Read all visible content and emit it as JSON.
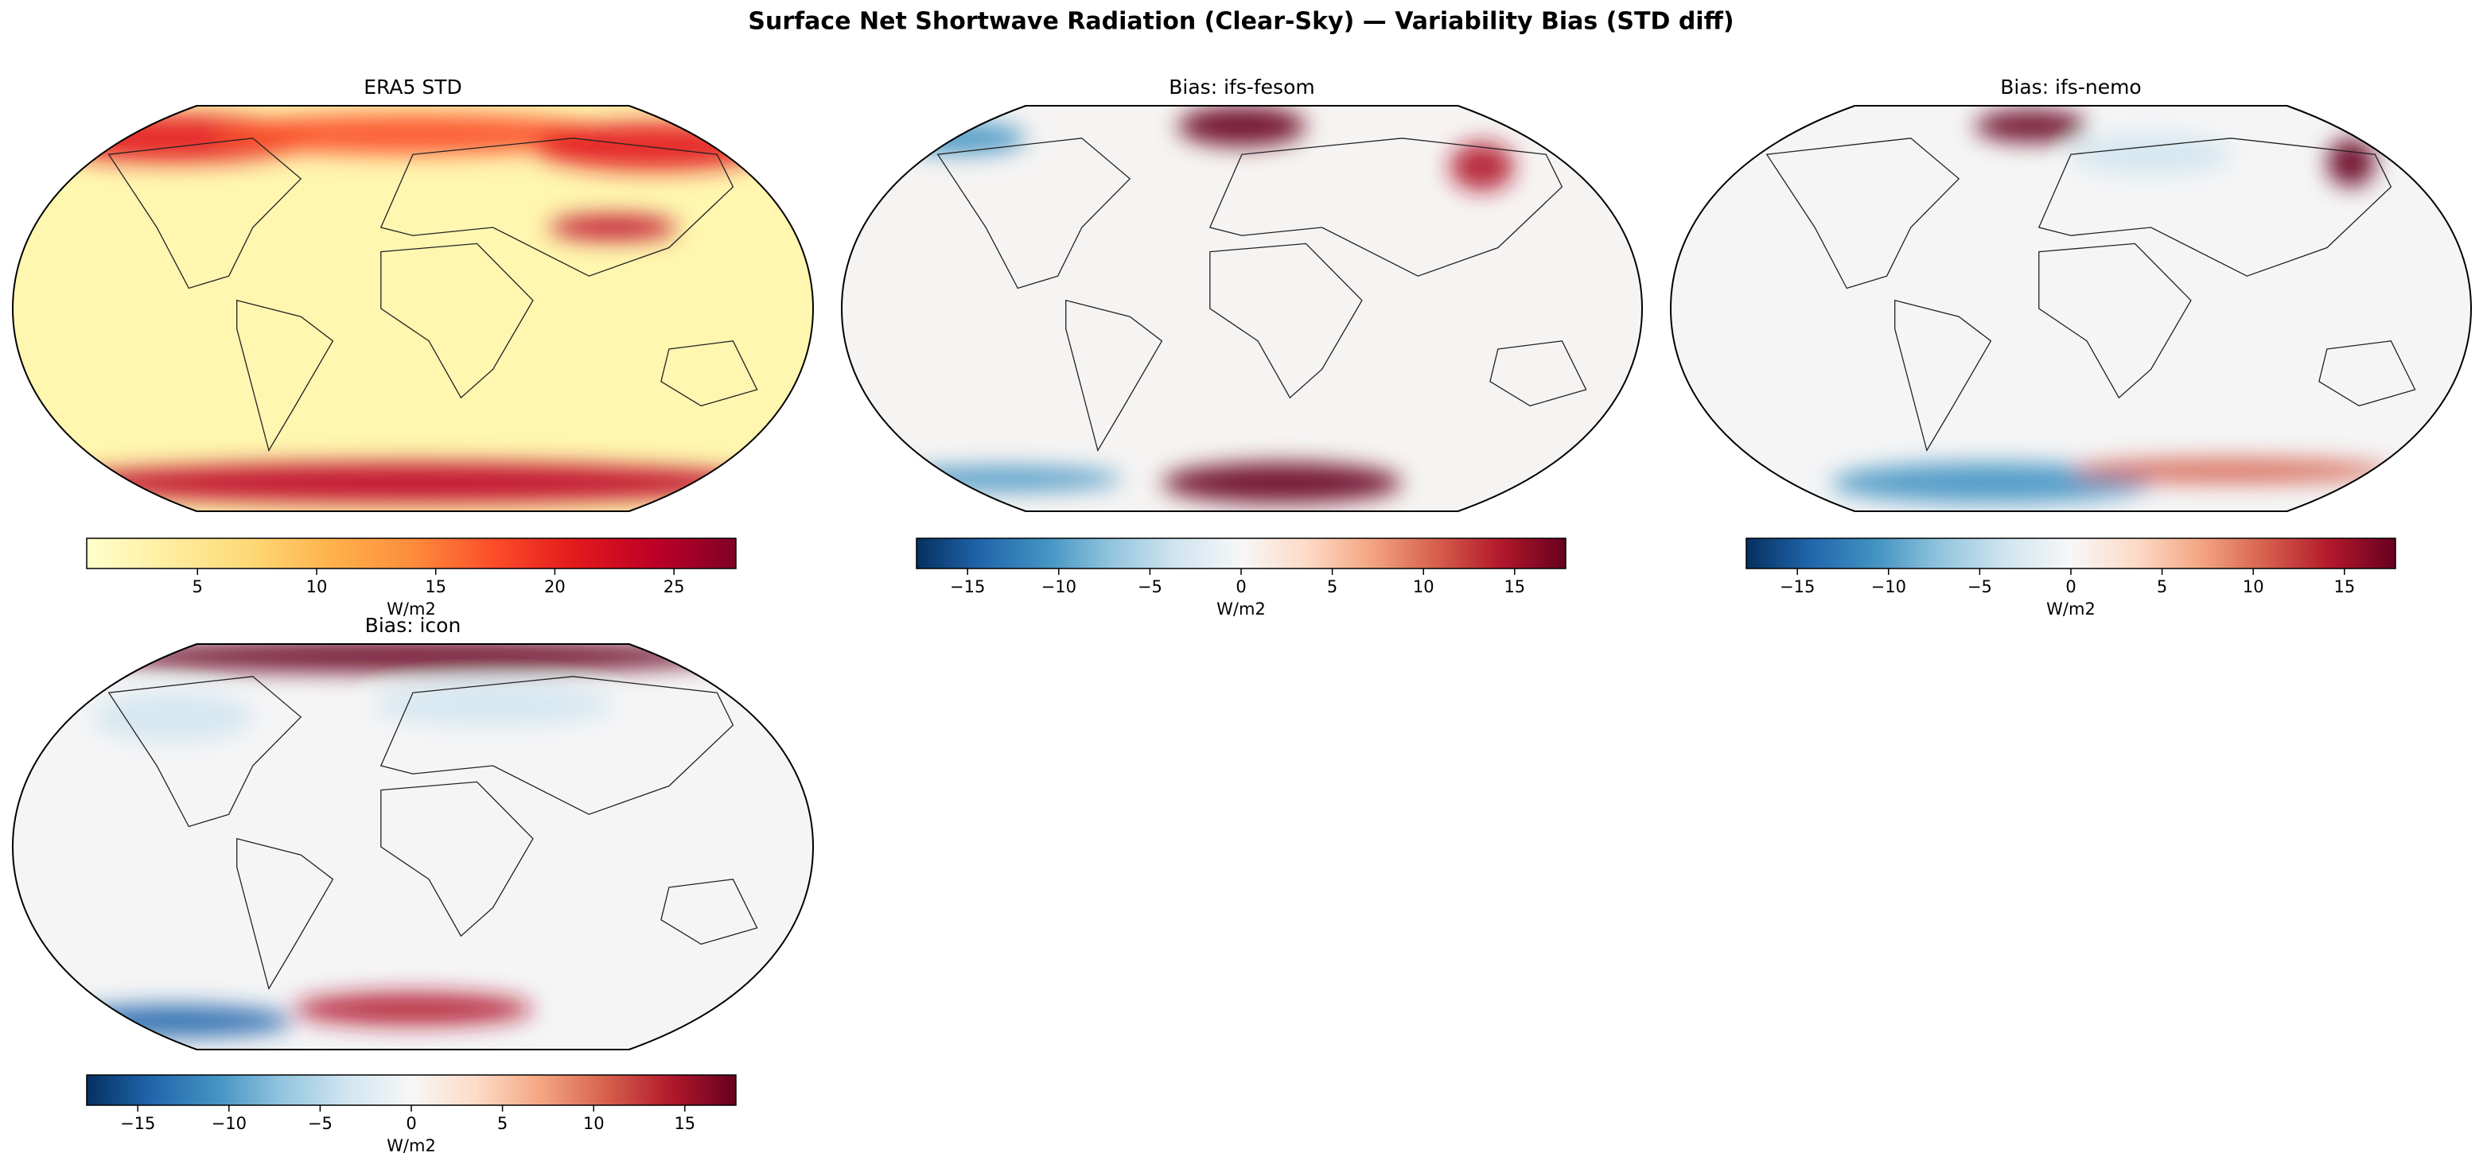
{
  "chart_data": [
    {
      "type": "map",
      "figure_title": "Surface Net Shortwave Radiation (Clear-Sky) — Variability Bias (STD diff)",
      "title": "ERA5 STD",
      "colorbar": {
        "label": "W/m2",
        "lim": [
          0.35,
          27.6
        ],
        "ticks": [
          5,
          10,
          15,
          20,
          25
        ],
        "colors": [
          "#ffffcc",
          "#ffeda0",
          "#fed976",
          "#feb24c",
          "#fd8d3c",
          "#fc4e2a",
          "#e31a1c",
          "#bd0026",
          "#800026"
        ]
      },
      "field_color": "#fff6b0"
    },
    {
      "type": "map",
      "title": "Bias: ifs-fesom",
      "colorbar": {
        "label": "W/m2",
        "lim": [
          -17.8,
          17.8
        ],
        "ticks": [
          {
            "value": -15,
            "label": "−15"
          },
          {
            "value": -10,
            "label": "−10"
          },
          {
            "value": -5,
            "label": "−5"
          },
          0,
          5,
          10,
          15
        ],
        "colors": [
          "#053061",
          "#2166ac",
          "#4393c3",
          "#92c5de",
          "#d1e5f0",
          "#f7f7f7",
          "#fddbc7",
          "#f4a582",
          "#d6604d",
          "#b2182b",
          "#67001f"
        ]
      },
      "field_color": "#f6f4f3"
    },
    {
      "type": "map",
      "title": "Bias: ifs-nemo",
      "colorbar": {
        "label": "W/m2",
        "lim": [
          -17.8,
          17.8
        ],
        "ticks": [
          {
            "value": -15,
            "label": "−15"
          },
          {
            "value": -10,
            "label": "−10"
          },
          {
            "value": -5,
            "label": "−5"
          },
          0,
          5,
          10,
          15
        ],
        "colors": [
          "#053061",
          "#2166ac",
          "#4393c3",
          "#92c5de",
          "#d1e5f0",
          "#f7f7f7",
          "#fddbc7",
          "#f4a582",
          "#d6604d",
          "#b2182b",
          "#67001f"
        ]
      },
      "field_color": "#f5f5f6"
    },
    {
      "type": "map",
      "title": "Bias: icon",
      "colorbar": {
        "label": "W/m2",
        "lim": [
          -17.8,
          17.8
        ],
        "ticks": [
          {
            "value": -15,
            "label": "−15"
          },
          {
            "value": -10,
            "label": "−10"
          },
          {
            "value": -5,
            "label": "−5"
          },
          0,
          5,
          10,
          15
        ],
        "colors": [
          "#053061",
          "#2166ac",
          "#4393c3",
          "#92c5de",
          "#d1e5f0",
          "#f7f7f7",
          "#fddbc7",
          "#f4a582",
          "#d6604d",
          "#b2182b",
          "#67001f"
        ]
      },
      "field_color": "#f5f5f6"
    }
  ]
}
